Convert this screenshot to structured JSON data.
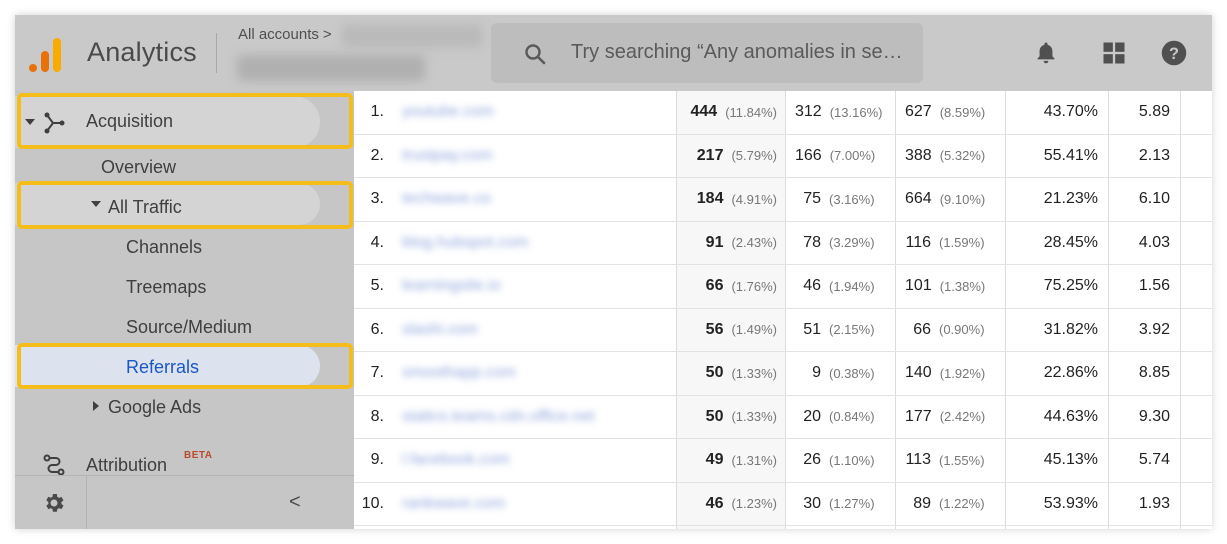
{
  "header": {
    "app_title": "Analytics",
    "accounts_label": "All accounts",
    "accounts_chevron": ">",
    "search_placeholder": "Try searching “Any anomalies in se…",
    "colors": {
      "logo_orange": "#e8710a",
      "logo_yellow": "#f9ab00",
      "highlight": "#f5bd1b",
      "active_link": "#1a56c4"
    }
  },
  "sidebar": {
    "acquisition": "Acquisition",
    "overview": "Overview",
    "all_traffic": "All Traffic",
    "channels": "Channels",
    "treemaps": "Treemaps",
    "source_medium": "Source/Medium",
    "referrals": "Referrals",
    "google_ads": "Google Ads",
    "attribution": "Attribution",
    "beta": "BETA",
    "collapse_chevron": "<"
  },
  "table": {
    "rows": [
      {
        "idx": "1.",
        "source": "youtube.com",
        "c1": "444",
        "c1p": "(11.84%)",
        "c2": "312",
        "c2p": "(13.16%)",
        "c3": "627",
        "c3p": "(8.59%)",
        "c4": "43.70%",
        "c5": "5.89"
      },
      {
        "idx": "2.",
        "source": "trustpay.com",
        "c1": "217",
        "c1p": "(5.79%)",
        "c2": "166",
        "c2p": "(7.00%)",
        "c3": "388",
        "c3p": "(5.32%)",
        "c4": "55.41%",
        "c5": "2.13"
      },
      {
        "idx": "3.",
        "source": "techwave.co",
        "c1": "184",
        "c1p": "(4.91%)",
        "c2": "75",
        "c2p": "(3.16%)",
        "c3": "664",
        "c3p": "(9.10%)",
        "c4": "21.23%",
        "c5": "6.10"
      },
      {
        "idx": "4.",
        "source": "blog.hubspot.com",
        "c1": "91",
        "c1p": "(2.43%)",
        "c2": "78",
        "c2p": "(3.29%)",
        "c3": "116",
        "c3p": "(1.59%)",
        "c4": "28.45%",
        "c5": "4.03"
      },
      {
        "idx": "5.",
        "source": "learningsite.io",
        "c1": "66",
        "c1p": "(1.76%)",
        "c2": "46",
        "c2p": "(1.94%)",
        "c3": "101",
        "c3p": "(1.38%)",
        "c4": "75.25%",
        "c5": "1.56"
      },
      {
        "idx": "6.",
        "source": "slashi.com",
        "c1": "56",
        "c1p": "(1.49%)",
        "c2": "51",
        "c2p": "(2.15%)",
        "c3": "66",
        "c3p": "(0.90%)",
        "c4": "31.82%",
        "c5": "3.92"
      },
      {
        "idx": "7.",
        "source": "smoothapp.com",
        "c1": "50",
        "c1p": "(1.33%)",
        "c2": "9",
        "c2p": "(0.38%)",
        "c3": "140",
        "c3p": "(1.92%)",
        "c4": "22.86%",
        "c5": "8.85"
      },
      {
        "idx": "8.",
        "source": "statics.teams.cdn.office.net",
        "c1": "50",
        "c1p": "(1.33%)",
        "c2": "20",
        "c2p": "(0.84%)",
        "c3": "177",
        "c3p": "(2.42%)",
        "c4": "44.63%",
        "c5": "9.30"
      },
      {
        "idx": "9.",
        "source": "l.facebook.com",
        "c1": "49",
        "c1p": "(1.31%)",
        "c2": "26",
        "c2p": "(1.10%)",
        "c3": "113",
        "c3p": "(1.55%)",
        "c4": "45.13%",
        "c5": "5.74"
      },
      {
        "idx": "10.",
        "source": "rankwave.com",
        "c1": "46",
        "c1p": "(1.23%)",
        "c2": "30",
        "c2p": "(1.27%)",
        "c3": "89",
        "c3p": "(1.22%)",
        "c4": "53.93%",
        "c5": "1.93"
      }
    ]
  }
}
